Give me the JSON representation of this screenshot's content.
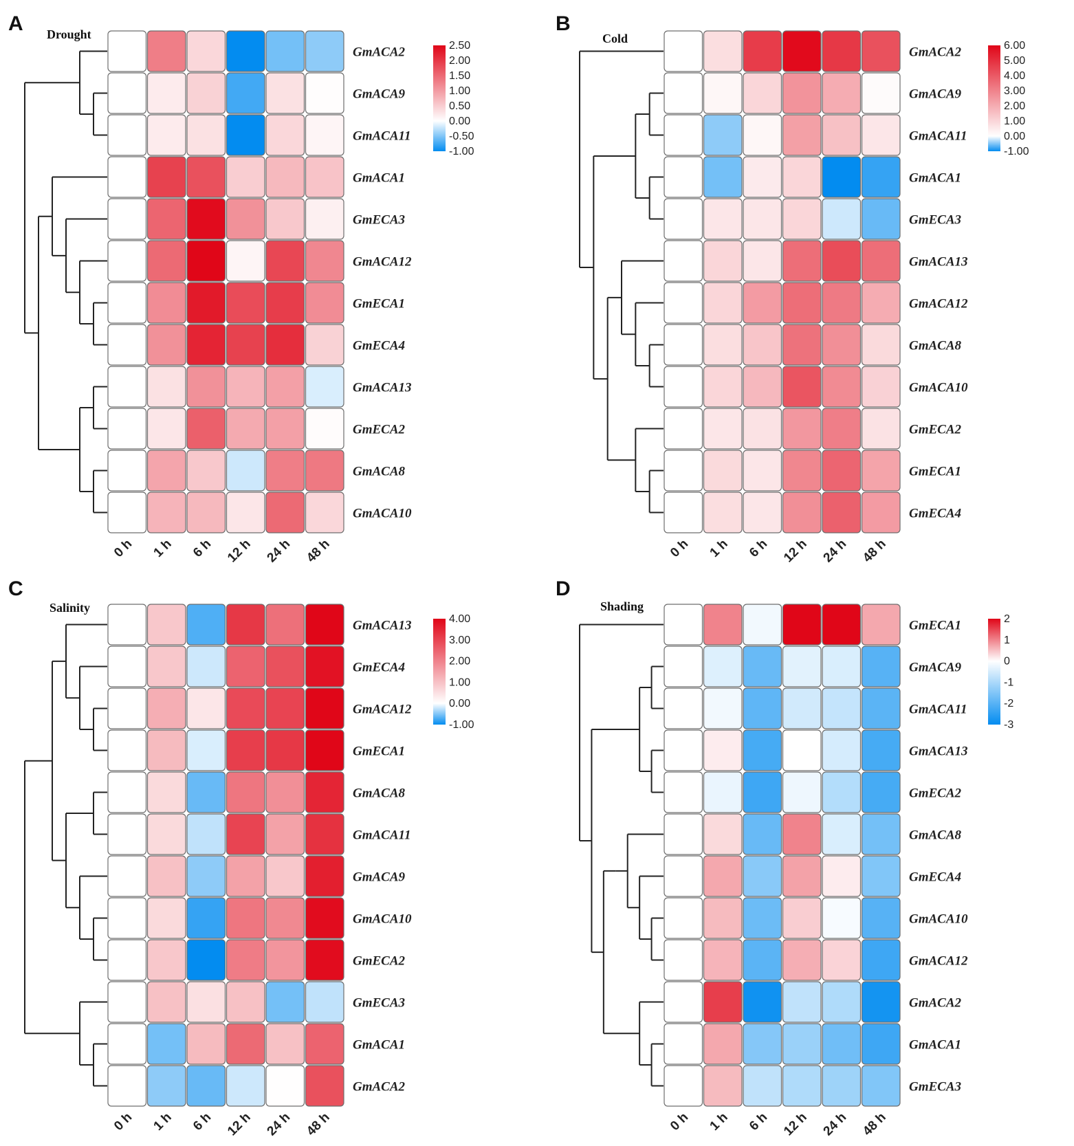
{
  "figure": {
    "panels": [
      "A",
      "B",
      "C",
      "D"
    ]
  },
  "chart_data": [
    {
      "panel": "A",
      "type": "heatmap",
      "title": "Drought",
      "x_labels": [
        "0 h",
        "1 h",
        "6 h",
        "12 h",
        "24 h",
        "48 h"
      ],
      "rows": [
        "GmACA2",
        "GmACA9",
        "GmACA11",
        "GmACA1",
        "GmECA3",
        "GmACA12",
        "GmECA1",
        "GmECA4",
        "GmACA13",
        "GmECA2",
        "GmACA8",
        "GmACA10"
      ],
      "values": [
        [
          0,
          1.3,
          0.4,
          -1.0,
          -0.55,
          -0.45
        ],
        [
          0,
          0.2,
          0.45,
          -0.75,
          0.3,
          0.02
        ],
        [
          0,
          0.2,
          0.3,
          -1.0,
          0.4,
          0.1
        ],
        [
          0,
          1.9,
          1.75,
          0.5,
          0.7,
          0.6
        ],
        [
          0,
          1.55,
          2.45,
          1.1,
          0.55,
          0.15
        ],
        [
          0,
          1.5,
          2.5,
          0.1,
          1.85,
          1.2
        ],
        [
          0,
          1.15,
          2.3,
          1.8,
          1.95,
          1.15
        ],
        [
          0,
          1.1,
          2.2,
          1.9,
          2.1,
          0.45
        ],
        [
          0,
          0.3,
          1.1,
          0.75,
          0.95,
          -0.15
        ],
        [
          0,
          0.25,
          1.6,
          0.85,
          0.95,
          0.03
        ],
        [
          0,
          0.9,
          0.55,
          -0.2,
          1.3,
          1.35
        ],
        [
          0,
          0.75,
          0.7,
          0.25,
          1.5,
          0.4
        ]
      ],
      "legend": {
        "ticks": [
          "2.50",
          "2.00",
          "1.50",
          "1.00",
          "0.50",
          "0.00",
          "-0.50",
          "-1.00"
        ],
        "min": -1.0,
        "max": 2.5
      }
    },
    {
      "panel": "B",
      "type": "heatmap",
      "title": "Cold",
      "x_labels": [
        "0 h",
        "1 h",
        "6 h",
        "12 h",
        "24 h",
        "48 h"
      ],
      "rows": [
        "GmACA2",
        "GmACA9",
        "GmACA11",
        "GmACA1",
        "GmECA3",
        "GmACA13",
        "GmACA12",
        "GmACA8",
        "GmACA10",
        "GmECA2",
        "GmECA1",
        "GmECA4"
      ],
      "values": [
        [
          0,
          0.8,
          4.7,
          5.9,
          4.8,
          4.2
        ],
        [
          0,
          0.2,
          1.0,
          2.6,
          2.0,
          0.1
        ],
        [
          0,
          -0.45,
          0.2,
          2.3,
          1.5,
          0.6
        ],
        [
          0,
          -0.55,
          0.5,
          1.0,
          -1.0,
          -0.8
        ],
        [
          0,
          0.6,
          0.6,
          1.0,
          -0.2,
          -0.6
        ],
        [
          0,
          1.0,
          0.6,
          3.5,
          4.3,
          3.5
        ],
        [
          0,
          1.0,
          2.4,
          3.5,
          3.2,
          2.0
        ],
        [
          0,
          0.8,
          1.4,
          3.4,
          2.7,
          0.9
        ],
        [
          0,
          1.0,
          1.7,
          4.1,
          2.8,
          1.1
        ],
        [
          0,
          0.6,
          0.7,
          2.5,
          3.1,
          0.7
        ],
        [
          0,
          0.9,
          0.6,
          2.9,
          3.7,
          2.2
        ],
        [
          0,
          0.8,
          0.6,
          2.7,
          3.8,
          2.4
        ]
      ],
      "legend": {
        "ticks": [
          "6.00",
          "5.00",
          "4.00",
          "3.00",
          "2.00",
          "1.00",
          "0.00",
          "-1.00"
        ],
        "min": -1.0,
        "max": 6.0
      }
    },
    {
      "panel": "C",
      "type": "heatmap",
      "title": "Salinity",
      "x_labels": [
        "0 h",
        "1 h",
        "6 h",
        "12 h",
        "24 h",
        "48 h"
      ],
      "rows": [
        "GmACA13",
        "GmECA4",
        "GmACA12",
        "GmECA1",
        "GmACA8",
        "GmACA11",
        "GmACA9",
        "GmACA10",
        "GmECA2",
        "GmECA3",
        "GmACA1",
        "GmACA2"
      ],
      "values": [
        [
          0,
          0.9,
          -0.7,
          3.2,
          2.3,
          4.0
        ],
        [
          0,
          0.9,
          -0.2,
          2.5,
          2.8,
          3.8
        ],
        [
          0,
          1.3,
          0.4,
          2.9,
          3.0,
          4.0
        ],
        [
          0,
          1.1,
          -0.15,
          3.1,
          3.2,
          4.0
        ],
        [
          0,
          0.6,
          -0.6,
          2.2,
          1.8,
          3.5
        ],
        [
          0,
          0.6,
          -0.25,
          3.0,
          1.5,
          3.3
        ],
        [
          0,
          1.0,
          -0.45,
          1.5,
          0.9,
          3.6
        ],
        [
          0,
          0.6,
          -0.8,
          2.2,
          1.9,
          3.9
        ],
        [
          0,
          0.9,
          -1.0,
          2.1,
          1.7,
          3.9
        ],
        [
          0,
          1.0,
          0.5,
          1.0,
          -0.55,
          -0.25
        ],
        [
          0,
          -0.55,
          1.1,
          2.4,
          1.0,
          2.5
        ],
        [
          0,
          -0.45,
          -0.6,
          -0.2,
          0.02,
          2.8
        ]
      ],
      "legend": {
        "ticks": [
          "4.00",
          "3.00",
          "2.00",
          "1.00",
          "0.00",
          "-1.00"
        ],
        "min": -1.0,
        "max": 4.0
      }
    },
    {
      "panel": "D",
      "type": "heatmap",
      "title": "Shading",
      "x_labels": [
        "0 h",
        "1 h",
        "6 h",
        "12 h",
        "24 h",
        "48 h"
      ],
      "rows": [
        "GmECA1",
        "GmACA9",
        "GmACA11",
        "GmACA13",
        "GmECA2",
        "GmACA8",
        "GmECA4",
        "GmACA10",
        "GmACA12",
        "GmACA2",
        "GmACA1",
        "GmECA3"
      ],
      "values": [
        [
          0,
          1.0,
          -0.15,
          2.0,
          2.0,
          0.7
        ],
        [
          0,
          -0.4,
          -1.8,
          -0.35,
          -0.45,
          -2.0
        ],
        [
          0,
          -0.15,
          -1.9,
          -0.55,
          -0.7,
          -1.95
        ],
        [
          0,
          0.15,
          -2.2,
          0.0,
          -0.5,
          -2.2
        ],
        [
          0,
          -0.25,
          -2.3,
          -0.2,
          -0.9,
          -2.2
        ],
        [
          0,
          0.3,
          -1.8,
          1.0,
          -0.45,
          -1.65
        ],
        [
          0,
          0.7,
          -1.4,
          0.75,
          0.15,
          -1.5
        ],
        [
          0,
          0.55,
          -1.75,
          0.4,
          -0.1,
          -2.0
        ],
        [
          0,
          0.6,
          -1.95,
          0.65,
          0.35,
          -2.3
        ],
        [
          0,
          1.55,
          -2.85,
          -0.75,
          -0.95,
          -2.8
        ],
        [
          0,
          0.7,
          -1.45,
          -1.2,
          -1.7,
          -2.3
        ],
        [
          0,
          0.55,
          -0.75,
          -0.95,
          -1.15,
          -1.5
        ]
      ],
      "legend": {
        "ticks": [
          "2",
          "1",
          "0",
          "-1",
          "-2",
          "-3"
        ],
        "min": -3,
        "max": 2
      }
    }
  ]
}
